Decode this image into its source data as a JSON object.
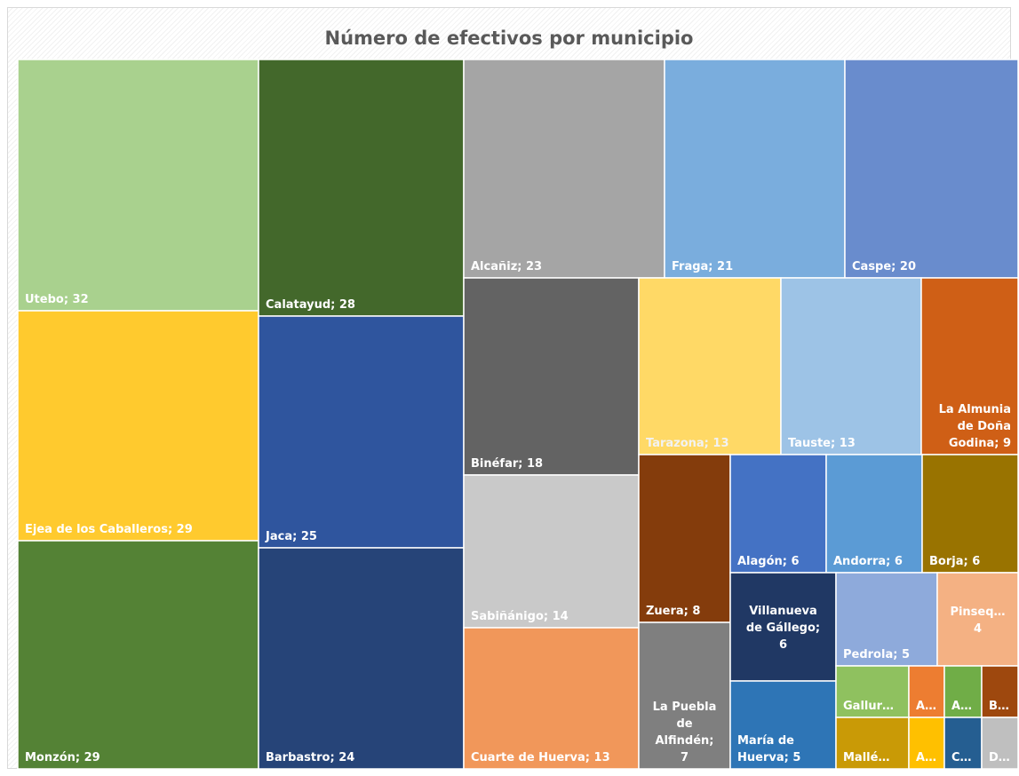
{
  "chart_data": {
    "type": "treemap",
    "title": "Número de efectivos por municipio",
    "units": [
      {
        "name": "Utebo",
        "value": 32,
        "color": "#a9d18e",
        "label": "Utebo; 32",
        "lines": [
          "Utebo; 32"
        ]
      },
      {
        "name": "Ejea de los Caballeros",
        "value": 29,
        "color": "#ffca2e",
        "label": "Ejea de los Caballeros; 29",
        "lines": [
          "Ejea de los Caballeros; 29"
        ]
      },
      {
        "name": "Monzón",
        "value": 29,
        "color": "#548235",
        "label": "Monzón; 29",
        "lines": [
          "Monzón; 29"
        ]
      },
      {
        "name": "Calatayud",
        "value": 28,
        "color": "#43682b",
        "label": "Calatayud; 28",
        "lines": [
          "Calatayud; 28"
        ]
      },
      {
        "name": "Jaca",
        "value": 25,
        "color": "#2f559e",
        "label": "Jaca; 25",
        "lines": [
          "Jaca; 25"
        ]
      },
      {
        "name": "Barbastro",
        "value": 24,
        "color": "#264478",
        "label": "Barbastro; 24",
        "lines": [
          "Barbastro; 24"
        ]
      },
      {
        "name": "Alcañiz",
        "value": 23,
        "color": "#a5a5a5",
        "label": "Alcañiz; 23",
        "lines": [
          "Alcañiz; 23"
        ]
      },
      {
        "name": "Fraga",
        "value": 21,
        "color": "#7aaddd",
        "label": "Fraga; 21",
        "lines": [
          "Fraga; 21"
        ]
      },
      {
        "name": "Caspe",
        "value": 20,
        "color": "#698ccd",
        "label": "Caspe; 20",
        "lines": [
          "Caspe; 20"
        ]
      },
      {
        "name": "Binéfar",
        "value": 18,
        "color": "#636363",
        "label": "Binéfar; 18",
        "lines": [
          "Binéfar; 18"
        ]
      },
      {
        "name": "Sabiñánigo",
        "value": 14,
        "color": "#c9c9c9",
        "label": "Sabiñánigo; 14",
        "lines": [
          "Sabiñánigo; 14"
        ]
      },
      {
        "name": "Cuarte de Huerva",
        "value": 13,
        "color": "#f1975a",
        "label": "Cuarte de Huerva; 13",
        "lines": [
          "Cuarte de Huerva; 13"
        ]
      },
      {
        "name": "Tarazona",
        "value": 13,
        "color": "#ffd966",
        "label": "Tarazona; 13",
        "lines": [
          "Tarazona; 13"
        ]
      },
      {
        "name": "Tauste",
        "value": 13,
        "color": "#9dc3e6",
        "label": "Tauste; 13",
        "lines": [
          "Tauste; 13"
        ]
      },
      {
        "name": "La Almunia de Doña Godina",
        "value": 9,
        "color": "#cf5f16",
        "label": "La Almunia de Doña Godina; 9",
        "lines": [
          "La Almunia",
          "de Doña",
          "Godina; 9"
        ]
      },
      {
        "name": "Zuera",
        "value": 8,
        "color": "#843c0c",
        "label": "Zuera; 8",
        "lines": [
          "Zuera; 8"
        ]
      },
      {
        "name": "La Puebla de Alfindén",
        "value": 7,
        "color": "#7f7f7f",
        "label": "La Puebla de Alfindén; 7",
        "lines": [
          "La Puebla",
          "de",
          "Alfindén;",
          "7"
        ]
      },
      {
        "name": "Alagón",
        "value": 6,
        "color": "#4472c4",
        "label": "Alagón; 6",
        "lines": [
          "Alagón; 6"
        ]
      },
      {
        "name": "Andorra",
        "value": 6,
        "color": "#5b9bd5",
        "label": "Andorra; 6",
        "lines": [
          "Andorra; 6"
        ]
      },
      {
        "name": "Borja",
        "value": 6,
        "color": "#997300",
        "label": "Borja; 6",
        "lines": [
          "Borja; 6"
        ]
      },
      {
        "name": "Villanueva de Gállego",
        "value": 6,
        "color": "#203864",
        "label": "Villanueva de Gállego; 6",
        "lines": [
          "Villanueva",
          "de Gállego;",
          "6"
        ]
      },
      {
        "name": "María de Huerva",
        "value": 5,
        "color": "#2e75b6",
        "label": "María de Huerva; 5",
        "lines": [
          "María de",
          "Huerva; 5"
        ]
      },
      {
        "name": "Pedrola",
        "value": 5,
        "color": "#8eaadb",
        "label": "Pedrola; 5",
        "lines": [
          "Pedrola; 5"
        ]
      },
      {
        "name": "Pinseq…",
        "value": 4,
        "color": "#f4b183",
        "label": "Pinseq… 4",
        "lines": [
          "Pinseq…",
          "4"
        ]
      },
      {
        "name": "Gallur…",
        "value": null,
        "color": "#8fc15f",
        "label": "Gallur…",
        "lines": [
          "Gallur…"
        ]
      },
      {
        "name": "A… (1)",
        "value": null,
        "color": "#ed7d31",
        "label": "A…",
        "lines": [
          "A…"
        ]
      },
      {
        "name": "A… (2)",
        "value": null,
        "color": "#70ad47",
        "label": "A…",
        "lines": [
          "A…"
        ]
      },
      {
        "name": "B…",
        "value": null,
        "color": "#9e480e",
        "label": "B…",
        "lines": [
          "B…"
        ]
      },
      {
        "name": "Mallé…",
        "value": null,
        "color": "#c99a06",
        "label": "Mallé…",
        "lines": [
          "Mallé…"
        ]
      },
      {
        "name": "A… (3)",
        "value": null,
        "color": "#ffc000",
        "label": "A…",
        "lines": [
          "A…"
        ]
      },
      {
        "name": "C…",
        "value": null,
        "color": "#255e91",
        "label": "C…",
        "lines": [
          "C…"
        ]
      },
      {
        "name": "D…",
        "value": null,
        "color": "#bfbfbf",
        "label": "D…",
        "lines": [
          "D…"
        ]
      }
    ]
  }
}
